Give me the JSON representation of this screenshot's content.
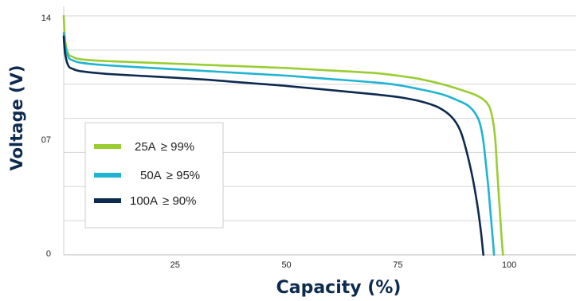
{
  "chart_data": {
    "type": "line",
    "title": "",
    "xlabel": "Capacity (%)",
    "ylabel": "Voltage (V)",
    "xlim": [
      0,
      115
    ],
    "ylim": [
      0,
      14
    ],
    "x_ticks": [
      {
        "value": 25,
        "label": "25"
      },
      {
        "value": 50,
        "label": "50"
      },
      {
        "value": 75,
        "label": "75"
      },
      {
        "value": 100,
        "label": "100"
      }
    ],
    "y_ticks": [
      {
        "value": 0,
        "label": "0"
      },
      {
        "value": 7,
        "label": "07"
      },
      {
        "value": 14,
        "label": "14"
      }
    ],
    "grid": {
      "horizontal": true,
      "vertical": false
    },
    "legend": {
      "placement": "center-left",
      "boxed": true
    },
    "series": [
      {
        "name": "25A",
        "efficiency": "≥ 99%",
        "color": "#9acd32",
        "points": [
          [
            0,
            14.0
          ],
          [
            0.3,
            12.6
          ],
          [
            1,
            11.8
          ],
          [
            2,
            11.6
          ],
          [
            4,
            11.45
          ],
          [
            10,
            11.35
          ],
          [
            20,
            11.25
          ],
          [
            30,
            11.15
          ],
          [
            40,
            11.05
          ],
          [
            50,
            10.95
          ],
          [
            60,
            10.8
          ],
          [
            70,
            10.65
          ],
          [
            75,
            10.5
          ],
          [
            80,
            10.3
          ],
          [
            85,
            10.0
          ],
          [
            90,
            9.6
          ],
          [
            93,
            9.3
          ],
          [
            95,
            8.9
          ],
          [
            96,
            8.3
          ],
          [
            96.8,
            7.0
          ],
          [
            97.3,
            5.0
          ],
          [
            97.8,
            3.0
          ],
          [
            98.3,
            1.0
          ],
          [
            98.6,
            0
          ]
        ]
      },
      {
        "name": "50A",
        "efficiency": "≥ 95%",
        "color": "#1fb4d2",
        "points": [
          [
            0,
            13.0
          ],
          [
            0.3,
            12.3
          ],
          [
            1,
            11.6
          ],
          [
            2,
            11.4
          ],
          [
            4,
            11.25
          ],
          [
            10,
            11.1
          ],
          [
            20,
            10.95
          ],
          [
            30,
            10.8
          ],
          [
            40,
            10.65
          ],
          [
            50,
            10.5
          ],
          [
            60,
            10.3
          ],
          [
            70,
            10.1
          ],
          [
            75,
            9.95
          ],
          [
            80,
            9.7
          ],
          [
            85,
            9.4
          ],
          [
            88,
            9.1
          ],
          [
            91,
            8.7
          ],
          [
            93,
            8.0
          ],
          [
            94,
            7.0
          ],
          [
            94.7,
            5.5
          ],
          [
            95.3,
            4.0
          ],
          [
            95.8,
            2.5
          ],
          [
            96.3,
            1.0
          ],
          [
            96.6,
            0
          ]
        ]
      },
      {
        "name": "100A",
        "efficiency": "≥ 90%",
        "color": "#0d2a4f",
        "points": [
          [
            0,
            12.8
          ],
          [
            0.3,
            11.8
          ],
          [
            1,
            11.1
          ],
          [
            2,
            10.9
          ],
          [
            4,
            10.75
          ],
          [
            10,
            10.6
          ],
          [
            20,
            10.45
          ],
          [
            30,
            10.3
          ],
          [
            40,
            10.1
          ],
          [
            50,
            9.9
          ],
          [
            60,
            9.65
          ],
          [
            70,
            9.4
          ],
          [
            75,
            9.25
          ],
          [
            80,
            9.0
          ],
          [
            84,
            8.65
          ],
          [
            87,
            8.1
          ],
          [
            89,
            7.3
          ],
          [
            90.5,
            6.0
          ],
          [
            91.8,
            4.5
          ],
          [
            92.8,
            3.0
          ],
          [
            93.6,
            1.5
          ],
          [
            94.2,
            0
          ]
        ]
      }
    ]
  }
}
